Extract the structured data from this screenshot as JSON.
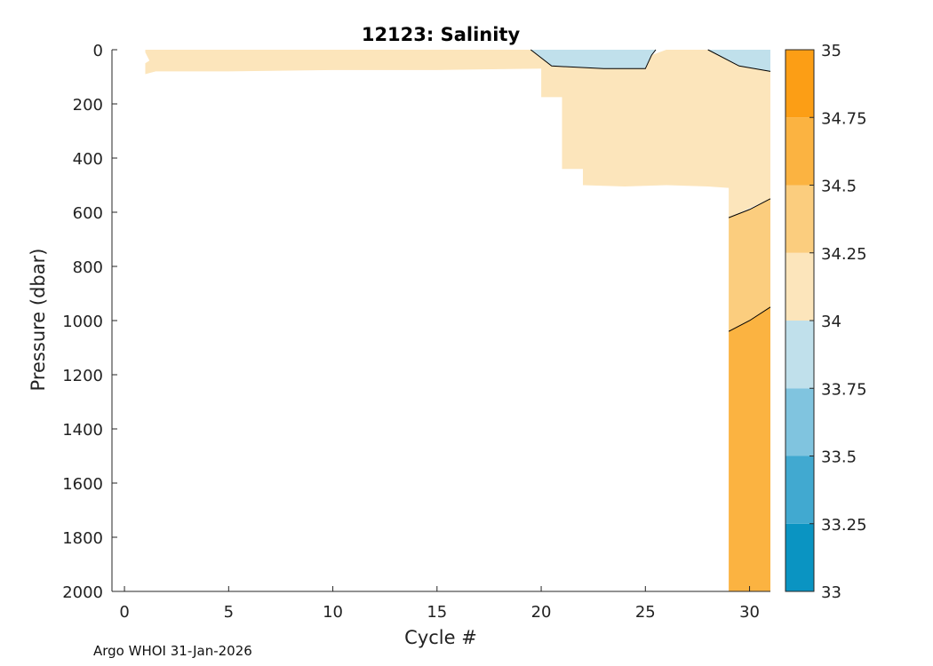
{
  "chart_data": {
    "type": "heatmap",
    "title": "12123:  Salinity",
    "xlabel": "Cycle #",
    "ylabel": "Pressure (dbar)",
    "xlim": [
      -0.6,
      31.0
    ],
    "ylim": [
      0,
      2000
    ],
    "y_reversed": true,
    "xticks": [
      0,
      5,
      10,
      15,
      20,
      25,
      30
    ],
    "yticks": [
      0,
      200,
      400,
      600,
      800,
      1000,
      1200,
      1400,
      1600,
      1800,
      2000
    ],
    "grid": false,
    "colorbar": {
      "levels": [
        33,
        33.25,
        33.5,
        33.75,
        34,
        34.25,
        34.5,
        34.75,
        35
      ],
      "labels": [
        "33",
        "33.25",
        "33.5",
        "33.75",
        "34",
        "34.25",
        "34.5",
        "34.75",
        "35"
      ],
      "colors": [
        "#0a94c2",
        "#41a9d0",
        "#80c4df",
        "#c0e0eb",
        "#fce5bb",
        "#fbcd7e",
        "#fbb341",
        "#fc9e15"
      ]
    },
    "regions": [
      {
        "name": "34.00-34.25",
        "color": "#fce5bb",
        "polygon": [
          [
            1,
            0
          ],
          [
            19.5,
            0
          ],
          [
            20.5,
            60
          ],
          [
            23,
            70
          ],
          [
            25,
            70
          ],
          [
            25.3,
            20
          ],
          [
            26,
            0
          ],
          [
            28,
            0
          ],
          [
            29.5,
            60
          ],
          [
            31,
            80
          ],
          [
            31,
            550
          ],
          [
            29,
            620
          ],
          [
            29,
            510
          ],
          [
            28,
            505
          ],
          [
            26,
            500
          ],
          [
            24,
            505
          ],
          [
            22,
            500
          ],
          [
            22,
            440
          ],
          [
            21,
            440
          ],
          [
            21,
            175
          ],
          [
            20,
            175
          ],
          [
            20,
            70
          ],
          [
            15,
            75
          ],
          [
            10,
            75
          ],
          [
            5,
            80
          ],
          [
            1.5,
            80
          ],
          [
            1,
            90
          ],
          [
            1,
            50
          ],
          [
            1.2,
            40
          ],
          [
            1,
            10
          ]
        ]
      },
      {
        "name": "33.75-34.00",
        "color": "#c0e0eb",
        "polygon": [
          [
            19.5,
            0
          ],
          [
            25.5,
            0
          ],
          [
            25.3,
            20
          ],
          [
            25,
            70
          ],
          [
            23,
            70
          ],
          [
            20.5,
            60
          ]
        ]
      },
      {
        "name": "33.75-34.00",
        "color": "#c0e0eb",
        "polygon": [
          [
            28,
            0
          ],
          [
            31,
            0
          ],
          [
            31,
            80
          ],
          [
            29.5,
            60
          ]
        ]
      },
      {
        "name": "34.25-34.50",
        "color": "#fbcd7e",
        "polygon": [
          [
            29,
            620
          ],
          [
            30,
            590
          ],
          [
            31,
            550
          ],
          [
            31,
            950
          ],
          [
            30,
            1000
          ],
          [
            29,
            1040
          ]
        ]
      },
      {
        "name": "34.50-34.75",
        "color": "#fbb341",
        "polygon": [
          [
            29,
            1040
          ],
          [
            30,
            1000
          ],
          [
            31,
            950
          ],
          [
            31,
            2000
          ],
          [
            29,
            2000
          ]
        ]
      }
    ],
    "contours": [
      [
        [
          19.5,
          0
        ],
        [
          20.5,
          60
        ],
        [
          23,
          70
        ],
        [
          25,
          70
        ],
        [
          25.3,
          20
        ],
        [
          25.5,
          0
        ]
      ],
      [
        [
          28,
          0
        ],
        [
          29.5,
          60
        ],
        [
          31,
          80
        ]
      ],
      [
        [
          29,
          620
        ],
        [
          30,
          590
        ],
        [
          31,
          550
        ]
      ],
      [
        [
          29,
          1040
        ],
        [
          30,
          1000
        ],
        [
          31,
          950
        ]
      ]
    ]
  },
  "footer": {
    "text": "Argo WHOI 31-Jan-2026"
  }
}
